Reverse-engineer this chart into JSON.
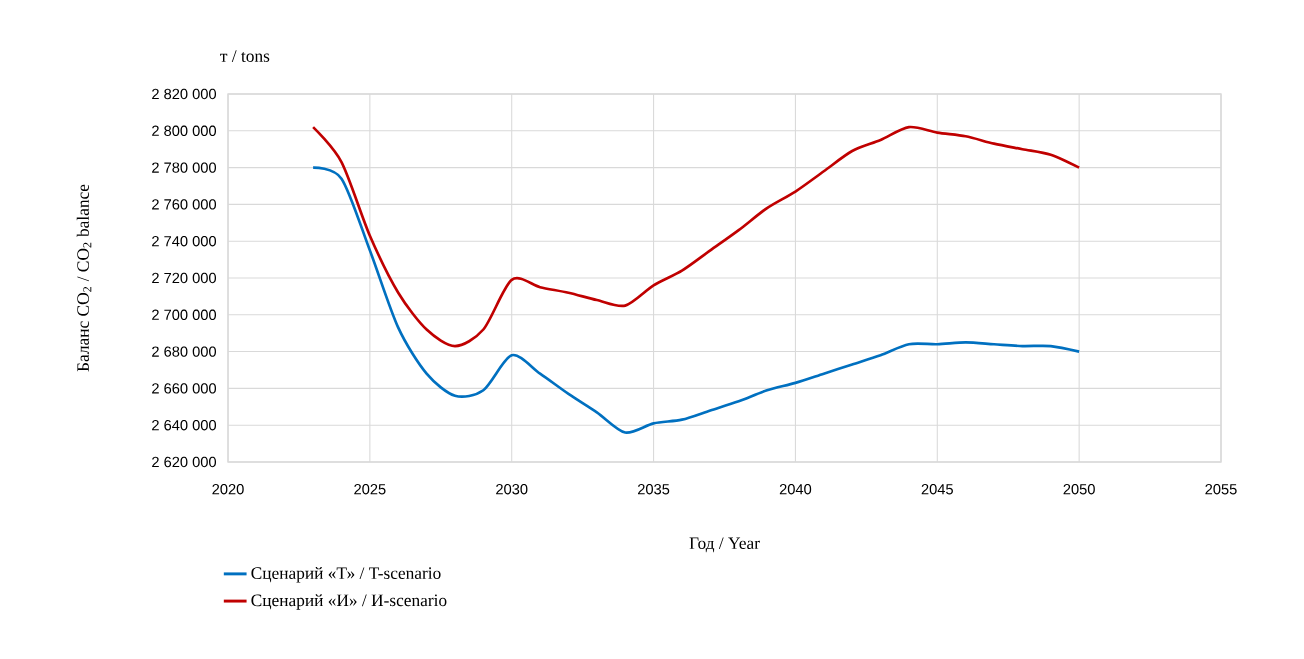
{
  "chart_data": {
    "type": "line",
    "xlabel": "Год / Year",
    "ylabel": "Баланс CO$_{2}$ / CO$_{2}$ balance",
    "annotations": [
      "т / tons"
    ],
    "x": [
      2023,
      2024,
      2025,
      2026,
      2027,
      2028,
      2029,
      2030,
      2031,
      2032,
      2033,
      2034,
      2035,
      2036,
      2037,
      2038,
      2039,
      2040,
      2041,
      2042,
      2043,
      2044,
      2045,
      2046,
      2047,
      2048,
      2049,
      2050
    ],
    "series": [
      {
        "name": "Сценарий «Т» / T-scenario",
        "color": "#0070c0",
        "values": [
          2780000,
          2774000,
          2735000,
          2693000,
          2668000,
          2656000,
          2659000,
          2678000,
          2668000,
          2657000,
          2647000,
          2636000,
          2641000,
          2643000,
          2648000,
          2653000,
          2659000,
          2663000,
          2668000,
          2673000,
          2678000,
          2684000,
          2684000,
          2685000,
          2684000,
          2683000,
          2683000,
          2680000
        ]
      },
      {
        "name": "Сценарий «И» / И-scenario",
        "color": "#c00000",
        "values": [
          2802000,
          2783000,
          2743000,
          2712000,
          2692000,
          2683000,
          2692000,
          2719000,
          2715000,
          2712000,
          2708000,
          2705000,
          2716000,
          2724000,
          2735000,
          2746000,
          2758000,
          2767000,
          2778000,
          2789000,
          2795000,
          2802000,
          2799000,
          2797000,
          2793000,
          2790000,
          2787000,
          2780000
        ]
      }
    ],
    "xlim": [
      2020,
      2055
    ],
    "xticks": [
      2020,
      2025,
      2030,
      2035,
      2040,
      2045,
      2050,
      2055
    ],
    "ylim": [
      2620000,
      2820000
    ],
    "yticks": [
      {
        "value": 2620000,
        "label": "2 620 000"
      },
      {
        "value": 2640000,
        "label": "2 640 000"
      },
      {
        "value": 2660000,
        "label": "2 660 000"
      },
      {
        "value": 2680000,
        "label": "2 680 000"
      },
      {
        "value": 2700000,
        "label": "2 700 000"
      },
      {
        "value": 2720000,
        "label": "2 720 000"
      },
      {
        "value": 2740000,
        "label": "2 740 000"
      },
      {
        "value": 2760000,
        "label": "2 760 000"
      },
      {
        "value": 2780000,
        "label": "2 780 000"
      },
      {
        "value": 2800000,
        "label": "2 800 000"
      },
      {
        "value": 2820000,
        "label": "2 820 000"
      }
    ],
    "grid": true,
    "legend": "bottom",
    "marker": "none",
    "line_style": "solid"
  }
}
